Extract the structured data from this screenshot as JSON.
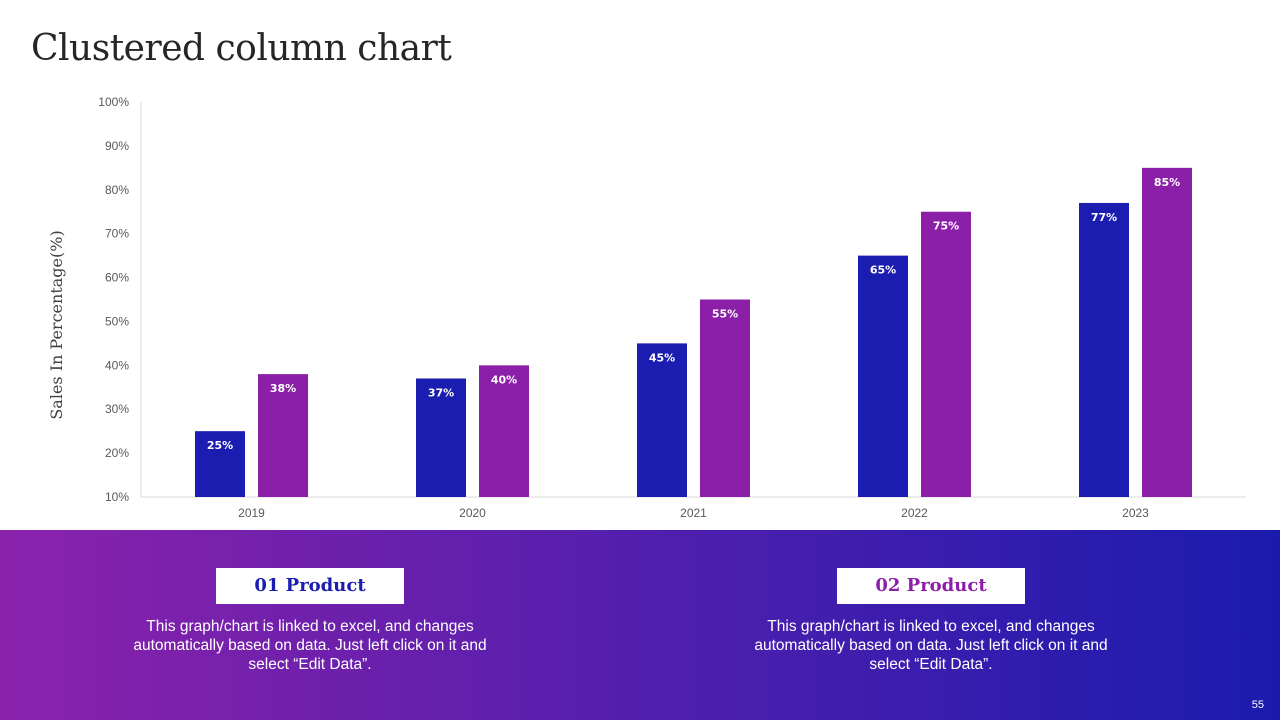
{
  "slide": {
    "title": "Clustered column chart",
    "page_number": "55"
  },
  "colors": {
    "product_01": "#1b1db0",
    "product_02": "#8c1fa8",
    "footer_gradient_start": "#8b22ac",
    "footer_gradient_end": "#1a1bae"
  },
  "chart_data": {
    "type": "bar",
    "title": "",
    "xlabel": "",
    "ylabel": "Sales In Percentage(%)",
    "categories": [
      "2019",
      "2020",
      "2021",
      "2022",
      "2023"
    ],
    "series": [
      {
        "name": "01 Product",
        "values": [
          25,
          37,
          45,
          65,
          77
        ],
        "labels": [
          "25%",
          "37%",
          "45%",
          "65%",
          "77%"
        ]
      },
      {
        "name": "02 Product",
        "values": [
          38,
          40,
          55,
          75,
          85
        ],
        "labels": [
          "38%",
          "40%",
          "55%",
          "75%",
          "85%"
        ]
      }
    ],
    "ylim": [
      10,
      100
    ],
    "yticks": [
      "10%",
      "20%",
      "30%",
      "40%",
      "50%",
      "60%",
      "70%",
      "80%",
      "90%",
      "100%"
    ],
    "grid": false
  },
  "products": [
    {
      "title": "01 Product",
      "description": "This graph/chart is linked to excel, and changes automatically based on data. Just left click on it and select “Edit Data”."
    },
    {
      "title": "02 Product",
      "description": "This graph/chart is linked to excel, and changes automatically based on data. Just left click on it and select “Edit Data”."
    }
  ]
}
